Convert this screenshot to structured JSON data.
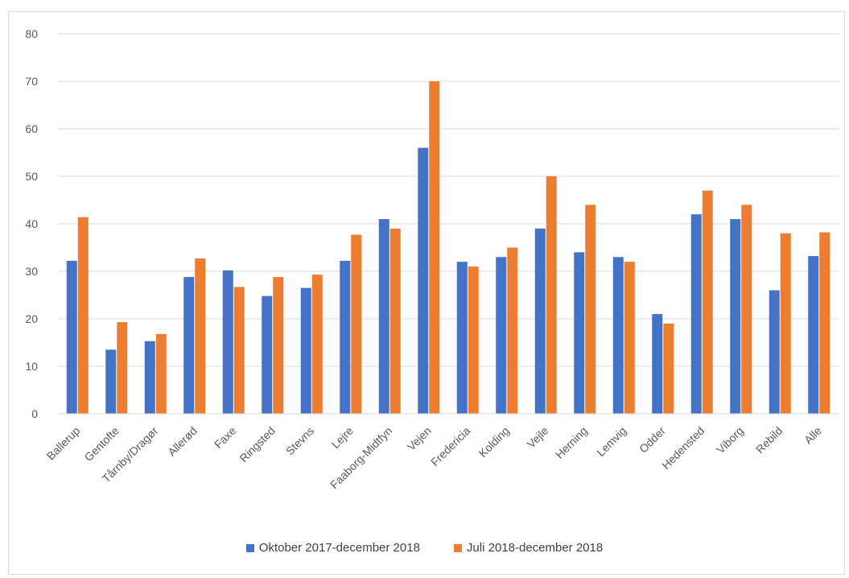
{
  "chart_data": {
    "type": "bar",
    "categories": [
      "Ballerup",
      "Gentofte",
      "Tårnby/Dragør",
      "Allerød",
      "Faxe",
      "Ringsted",
      "Stevns",
      "Lejre",
      "Faaborg-Midtfyn",
      "Vejen",
      "Fredericia",
      "Kolding",
      "Vejle",
      "Herning",
      "Lemvig",
      "Odder",
      "Hedensted",
      "Viborg",
      "Rebild",
      "Alle"
    ],
    "series": [
      {
        "name": "Oktober 2017-december 2018",
        "color": "#4472c4",
        "values": [
          32.2,
          13.5,
          15.3,
          28.8,
          30.2,
          24.8,
          26.5,
          32.2,
          41,
          56,
          32,
          33,
          39,
          34,
          33,
          21,
          42,
          41,
          26,
          33.2
        ]
      },
      {
        "name": "Juli 2018-december 2018",
        "color": "#ed7d31",
        "values": [
          41.4,
          19.3,
          16.8,
          32.7,
          26.7,
          28.8,
          29.3,
          37.7,
          39,
          70,
          31,
          35,
          50,
          44,
          32,
          19,
          47,
          44,
          38,
          38.2
        ]
      }
    ],
    "yticks": [
      "0",
      "10",
      "20",
      "30",
      "40",
      "50",
      "60",
      "70",
      "80"
    ],
    "ylim": [
      0,
      80
    ],
    "grid": true,
    "legend_position": "bottom"
  }
}
